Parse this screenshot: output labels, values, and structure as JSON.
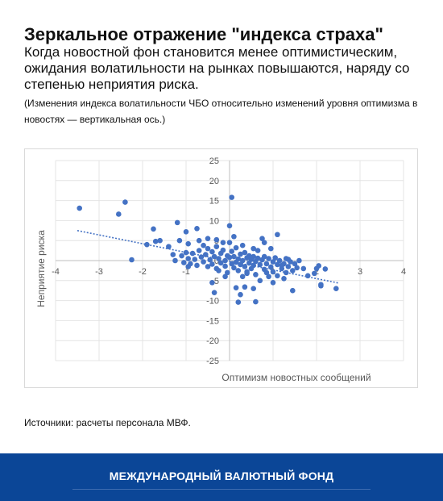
{
  "header": {
    "title": "Зеркальное отражение \"индекса страха\"",
    "subtitle": "Когда новостной фон становится менее оптимистическим, ожидания волатильности на рынках повышаются, наряду со степенью неприятия риска.",
    "note": "(Изменения индекса волатильности ЧБО относительно изменений уровня оптимизма в новостях — вертикальная ось.)"
  },
  "chart_data": {
    "type": "scatter",
    "xlabel": "Оптимизм новостных сообщений",
    "ylabel": "Неприятие риска",
    "xlim": [
      -4,
      4
    ],
    "ylim": [
      -25,
      25
    ],
    "xticks": [
      -4,
      -3,
      -2,
      -1,
      0,
      1,
      2,
      3,
      4
    ],
    "yticks": [
      25,
      20,
      15,
      10,
      5,
      0,
      -5,
      -10,
      -15,
      -20,
      -25
    ],
    "grid": true,
    "color": "#4472c4",
    "trendline": {
      "x": [
        -3.5,
        2.5
      ],
      "y": [
        7.5,
        -5.6
      ],
      "style": "dotted"
    },
    "points": [
      [
        -3.45,
        13.1
      ],
      [
        -2.4,
        14.6
      ],
      [
        -2.55,
        11.6
      ],
      [
        -2.25,
        0.2
      ],
      [
        -1.9,
        4.0
      ],
      [
        -1.75,
        7.9
      ],
      [
        -1.6,
        5.0
      ],
      [
        -1.4,
        3.5
      ],
      [
        -1.2,
        9.5
      ],
      [
        -1.0,
        7.2
      ],
      [
        -1.15,
        5.0
      ],
      [
        -0.95,
        4.2
      ],
      [
        -0.75,
        8.0
      ],
      [
        -0.7,
        5.0
      ],
      [
        -1.3,
        1.5
      ],
      [
        -1.25,
        0.0
      ],
      [
        -1.1,
        1.2
      ],
      [
        -1.05,
        -0.5
      ],
      [
        -1.0,
        2.0
      ],
      [
        -0.95,
        0.5
      ],
      [
        -0.9,
        -0.8
      ],
      [
        -0.85,
        1.8
      ],
      [
        -0.8,
        0.3
      ],
      [
        -0.75,
        -1.2
      ],
      [
        -0.7,
        2.5
      ],
      [
        -0.65,
        0.9
      ],
      [
        -0.6,
        -0.3
      ],
      [
        -0.55,
        1.5
      ],
      [
        -0.5,
        3.0
      ],
      [
        -0.5,
        -1.5
      ],
      [
        -0.45,
        0.2
      ],
      [
        -0.4,
        2.2
      ],
      [
        -0.4,
        -0.9
      ],
      [
        -0.35,
        1.0
      ],
      [
        -0.3,
        3.5
      ],
      [
        -0.3,
        -2.0
      ],
      [
        -0.25,
        0.5
      ],
      [
        -0.2,
        1.8
      ],
      [
        -0.2,
        -0.6
      ],
      [
        -0.15,
        2.6
      ],
      [
        -0.1,
        0.0
      ],
      [
        -0.1,
        -1.4
      ],
      [
        -0.05,
        1.2
      ],
      [
        -0.05,
        -3.0
      ],
      [
        0.0,
        4.5
      ],
      [
        0.05,
        15.8
      ],
      [
        0.0,
        8.7
      ],
      [
        -0.35,
        -8.0
      ],
      [
        -0.4,
        -5.5
      ],
      [
        -0.1,
        -4.0
      ],
      [
        0.0,
        0.8
      ],
      [
        0.05,
        -0.8
      ],
      [
        0.05,
        2.3
      ],
      [
        0.1,
        -1.8
      ],
      [
        0.1,
        1.0
      ],
      [
        0.15,
        3.2
      ],
      [
        0.15,
        -0.4
      ],
      [
        0.2,
        0.4
      ],
      [
        0.2,
        -2.5
      ],
      [
        0.25,
        1.6
      ],
      [
        0.25,
        -1.0
      ],
      [
        0.3,
        0.0
      ],
      [
        0.3,
        -4.0
      ],
      [
        0.35,
        2.0
      ],
      [
        0.35,
        -1.5
      ],
      [
        0.4,
        0.7
      ],
      [
        0.4,
        -3.2
      ],
      [
        0.45,
        1.2
      ],
      [
        0.45,
        -0.6
      ],
      [
        0.5,
        -2.0
      ],
      [
        0.5,
        0.3
      ],
      [
        0.55,
        -1.2
      ],
      [
        0.55,
        1.0
      ],
      [
        0.6,
        -0.2
      ],
      [
        0.6,
        -3.5
      ],
      [
        0.65,
        0.6
      ],
      [
        0.7,
        -1.0
      ],
      [
        0.7,
        -5.0
      ],
      [
        0.75,
        0.2
      ],
      [
        0.8,
        -2.2
      ],
      [
        0.8,
        1.0
      ],
      [
        0.85,
        -0.8
      ],
      [
        0.9,
        -4.0
      ],
      [
        0.9,
        0.5
      ],
      [
        0.95,
        -1.6
      ],
      [
        1.0,
        -0.3
      ],
      [
        1.0,
        -2.8
      ],
      [
        1.05,
        0.7
      ],
      [
        1.1,
        -1.0
      ],
      [
        1.1,
        -3.8
      ],
      [
        1.15,
        0.0
      ],
      [
        1.2,
        -2.0
      ],
      [
        1.25,
        -0.8
      ],
      [
        1.3,
        0.5
      ],
      [
        1.3,
        -3.0
      ],
      [
        1.35,
        -1.5
      ],
      [
        1.4,
        -0.3
      ],
      [
        1.45,
        -2.5
      ],
      [
        1.5,
        -0.8
      ],
      [
        1.55,
        -1.8
      ],
      [
        1.6,
        0.0
      ],
      [
        1.7,
        -2.0
      ],
      [
        1.8,
        -3.8
      ],
      [
        1.95,
        -3.2
      ],
      [
        2.0,
        -2.0
      ],
      [
        2.05,
        -1.3
      ],
      [
        2.1,
        -6.3
      ],
      [
        2.2,
        -2.1
      ],
      [
        2.45,
        -7.0
      ],
      [
        2.1,
        -6.0
      ],
      [
        1.45,
        -7.5
      ],
      [
        0.6,
        -10.3
      ],
      [
        0.2,
        -10.4
      ],
      [
        0.35,
        -6.6
      ],
      [
        0.55,
        -7.0
      ],
      [
        1.25,
        -4.5
      ],
      [
        1.1,
        6.5
      ],
      [
        0.75,
        5.5
      ],
      [
        0.8,
        4.5
      ],
      [
        0.95,
        3.0
      ],
      [
        -0.3,
        5.2
      ],
      [
        -0.5,
        5.5
      ],
      [
        0.3,
        3.8
      ],
      [
        0.55,
        3.0
      ],
      [
        -1.7,
        4.8
      ],
      [
        -0.15,
        4.5
      ],
      [
        0.65,
        2.5
      ],
      [
        1.35,
        0.3
      ],
      [
        -0.6,
        3.8
      ],
      [
        0.1,
        6.0
      ],
      [
        0.15,
        -6.8
      ],
      [
        0.25,
        -8.5
      ],
      [
        1.0,
        -5.5
      ],
      [
        -0.95,
        -1.5
      ],
      [
        -0.25,
        -2.5
      ],
      [
        0.4,
        -2.8
      ],
      [
        0.85,
        -3.0
      ],
      [
        1.2,
        -1.2
      ]
    ]
  },
  "source": "Источники: расчеты персонала МВФ.",
  "footer": {
    "org": "МЕЖДУНАРОДНЫЙ ВАЛЮТНЫЙ ФОНД"
  }
}
